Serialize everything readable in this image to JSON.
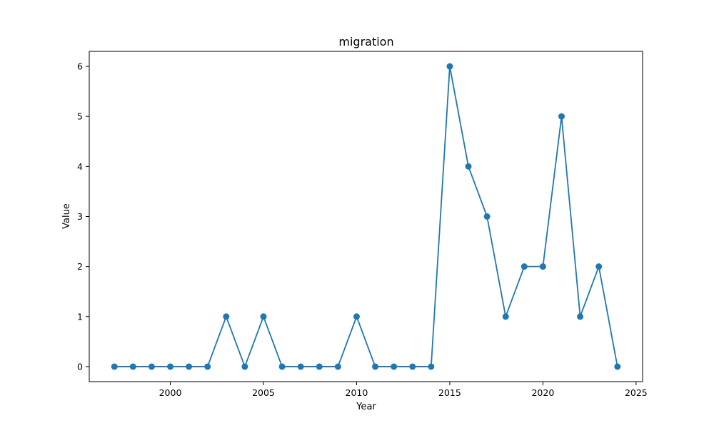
{
  "chart_data": {
    "type": "line",
    "title": "migration",
    "xlabel": "Year",
    "ylabel": "Value",
    "xlim": [
      1995.65,
      2025.35
    ],
    "ylim": [
      -0.3,
      6.3
    ],
    "x_ticks": [
      2000,
      2005,
      2010,
      2015,
      2020,
      2025
    ],
    "y_ticks": [
      0,
      1,
      2,
      3,
      4,
      5,
      6
    ],
    "grid": false,
    "series": [
      {
        "color": "#1f77b4",
        "marker": "circle",
        "x": [
          1997,
          1998,
          1999,
          2000,
          2001,
          2002,
          2003,
          2004,
          2005,
          2006,
          2007,
          2008,
          2009,
          2010,
          2011,
          2012,
          2013,
          2014,
          2015,
          2016,
          2017,
          2018,
          2019,
          2020,
          2021,
          2022,
          2023,
          2024
        ],
        "y": [
          0,
          0,
          0,
          0,
          0,
          0,
          1,
          0,
          1,
          0,
          0,
          0,
          0,
          1,
          0,
          0,
          0,
          0,
          6,
          4,
          3,
          1,
          2,
          2,
          5,
          1,
          2,
          0
        ]
      }
    ]
  }
}
